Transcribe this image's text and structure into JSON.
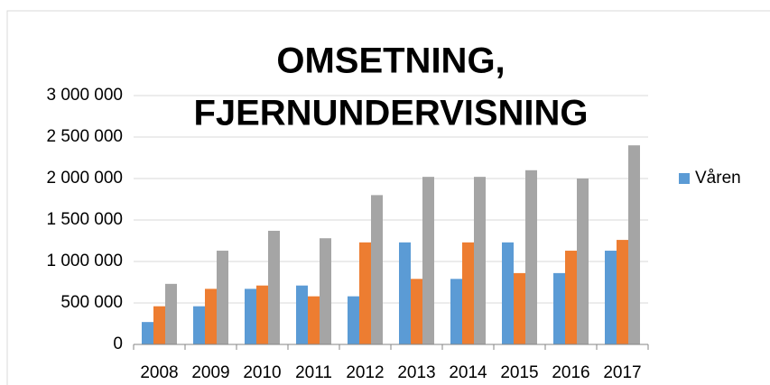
{
  "chart_data": {
    "type": "bar",
    "title": [
      "OMSETNING,",
      "FJERNUNDERVISNING"
    ],
    "categories": [
      "2008",
      "2009",
      "2010",
      "2011",
      "2012",
      "2013",
      "2014",
      "2015",
      "2016",
      "2017"
    ],
    "series": [
      {
        "name": "Våren",
        "color": "#5b9bd5",
        "values": [
          270000,
          460000,
          670000,
          710000,
          580000,
          1230000,
          790000,
          1230000,
          860000,
          1130000
        ]
      },
      {
        "color": "#ed7d31",
        "values": [
          460000,
          670000,
          710000,
          580000,
          1230000,
          790000,
          1230000,
          860000,
          1130000,
          1260000
        ]
      },
      {
        "color": "#a5a5a5",
        "values": [
          730000,
          1130000,
          1370000,
          1280000,
          1800000,
          2020000,
          2020000,
          2100000,
          2000000,
          2400000
        ]
      }
    ],
    "ylim": [
      0,
      3000000
    ],
    "yticks": [
      0,
      {
        "value": 500000,
        "label": "500 000"
      },
      {
        "value": 1000000,
        "label": "1 000 000"
      },
      {
        "value": 1500000,
        "label": "1 500 000"
      },
      {
        "value": 2000000,
        "label": "2 000 000"
      },
      {
        "value": 2500000,
        "label": "2 500 000"
      },
      {
        "value": 3000000,
        "label": "3 000 000"
      }
    ],
    "grid": true,
    "legend": "right"
  }
}
